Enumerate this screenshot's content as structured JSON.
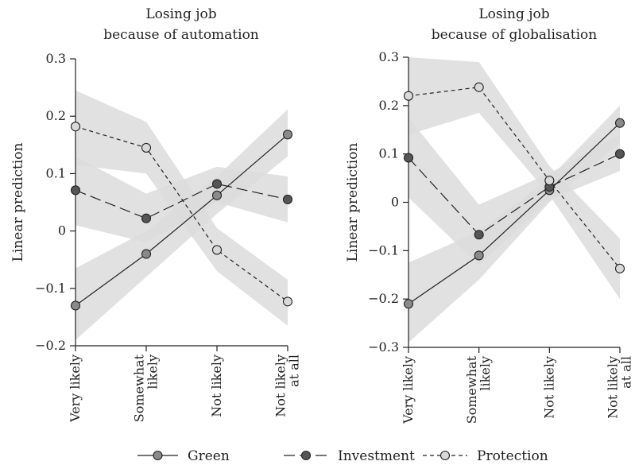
{
  "chart_data": [
    {
      "type": "line",
      "title": "Losing job\nbecause of automation",
      "ylabel": "Linear prediction",
      "ylim": [
        -0.2,
        0.3
      ],
      "yticks": [
        0.3,
        0.2,
        0.1,
        0,
        -0.1,
        -0.2
      ],
      "ytick_labels": [
        "0.3",
        "0.2",
        "0.1",
        "0",
        "−0.1",
        "−0.2"
      ],
      "categories": [
        "Very likely",
        "Somewhat\nlikely",
        "Not likely",
        "Not likely\nat all"
      ],
      "series": [
        {
          "name": "Green",
          "values": [
            -0.13,
            -0.04,
            0.062,
            0.168
          ],
          "ci": [
            [
              -0.19,
              -0.065
            ],
            [
              -0.08,
              0.0
            ],
            [
              0.03,
              0.095
            ],
            [
              0.13,
              0.212
            ]
          ],
          "style": "solid",
          "marker": "#8a8a8a"
        },
        {
          "name": "Investment",
          "values": [
            0.071,
            0.022,
            0.082,
            0.055
          ],
          "ci": [
            [
              0.01,
              0.13
            ],
            [
              -0.02,
              0.065
            ],
            [
              0.05,
              0.112
            ],
            [
              0.015,
              0.095
            ]
          ],
          "style": "longdash",
          "marker": "#555555"
        },
        {
          "name": "Protection",
          "values": [
            0.182,
            0.145,
            -0.033,
            -0.123
          ],
          "ci": [
            [
              0.115,
              0.245
            ],
            [
              0.1,
              0.19
            ],
            [
              -0.07,
              0.005
            ],
            [
              -0.165,
              -0.085
            ]
          ],
          "style": "shortdash",
          "marker": "#d9d9d9"
        }
      ]
    },
    {
      "type": "line",
      "title": "Losing job\nbecause of globalisation",
      "ylabel": "Linear prediction",
      "ylim": [
        -0.3,
        0.3
      ],
      "yticks": [
        0.3,
        0.2,
        0.1,
        0,
        -0.1,
        -0.2,
        -0.3
      ],
      "ytick_labels": [
        "0.3",
        "0.2",
        "0.1",
        "0",
        "−0.1",
        "−0.2",
        "−0.3"
      ],
      "categories": [
        "Very likely",
        "Somewhat\nlikely",
        "Not likely",
        "Not likely\nat all"
      ],
      "series": [
        {
          "name": "Green",
          "values": [
            -0.21,
            -0.11,
            0.025,
            0.164
          ],
          "ci": [
            [
              -0.29,
              -0.125
            ],
            [
              -0.16,
              -0.06
            ],
            [
              0.0,
              0.05
            ],
            [
              0.125,
              0.2
            ]
          ],
          "style": "solid",
          "marker": "#8a8a8a"
        },
        {
          "name": "Investment",
          "values": [
            0.092,
            -0.067,
            0.032,
            0.1
          ],
          "ci": [
            [
              0.01,
              0.175
            ],
            [
              -0.13,
              -0.005
            ],
            [
              0.005,
              0.06
            ],
            [
              0.065,
              0.14
            ]
          ],
          "style": "longdash",
          "marker": "#555555"
        },
        {
          "name": "Protection",
          "values": [
            0.22,
            0.238,
            0.045,
            -0.137
          ],
          "ci": [
            [
              0.14,
              0.3
            ],
            [
              0.185,
              0.29
            ],
            [
              0.015,
              0.075
            ],
            [
              -0.2,
              -0.075
            ]
          ],
          "style": "shortdash",
          "marker": "#d9d9d9"
        }
      ]
    }
  ],
  "legend": {
    "placement": "bottom",
    "items": [
      {
        "name": "Green",
        "style": "solid",
        "marker": "#8a8a8a"
      },
      {
        "name": "Investment",
        "style": "longdash",
        "marker": "#555555"
      },
      {
        "name": "Protection",
        "style": "shortdash",
        "marker": "#d9d9d9"
      }
    ]
  },
  "colors": {
    "band": "#dcdcdc",
    "line": "#222222",
    "axis": "#222222"
  }
}
